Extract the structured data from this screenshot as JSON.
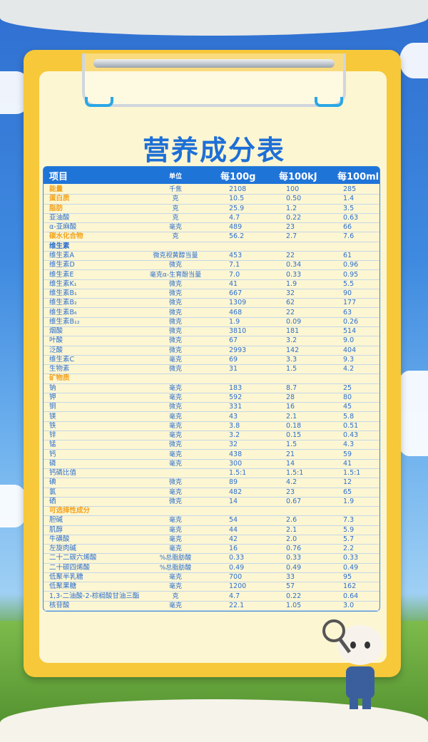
{
  "title": "营养成分表",
  "colors": {
    "accent": "#1f74d8",
    "highlight": "#f2a21b",
    "board": "#f6c83a",
    "paper": "#fdf6d2"
  },
  "table": {
    "headers": [
      "项目",
      "单位",
      "每100g",
      "每100kJ",
      "每100ml"
    ],
    "rows": [
      {
        "name": "能量",
        "unit": "千焦",
        "g": "2108",
        "kj": "100",
        "ml": "285",
        "style": "orange"
      },
      {
        "name": "蛋白质",
        "unit": "克",
        "g": "10.5",
        "kj": "0.50",
        "ml": "1.4",
        "style": "orange"
      },
      {
        "name": "脂肪",
        "unit": "克",
        "g": "25.9",
        "kj": "1.2",
        "ml": "3.5",
        "style": "orange"
      },
      {
        "name": "亚油酸",
        "unit": "克",
        "g": "4.7",
        "kj": "0.22",
        "ml": "0.63"
      },
      {
        "name": "α-亚麻酸",
        "unit": "毫克",
        "g": "489",
        "kj": "23",
        "ml": "66"
      },
      {
        "name": "碳水化合物",
        "unit": "克",
        "g": "56.2",
        "kj": "2.7",
        "ml": "7.6",
        "style": "orange"
      },
      {
        "name": "维生素",
        "unit": "",
        "g": "",
        "kj": "",
        "ml": "",
        "style": "section"
      },
      {
        "name": "维生素A",
        "unit": "微克视黄醇当量",
        "g": "453",
        "kj": "22",
        "ml": "61"
      },
      {
        "name": "维生素D",
        "unit": "微克",
        "g": "7.1",
        "kj": "0.34",
        "ml": "0.96"
      },
      {
        "name": "维生素E",
        "unit": "毫克α-生育酚当量",
        "g": "7.0",
        "kj": "0.33",
        "ml": "0.95"
      },
      {
        "name": "维生素K₁",
        "unit": "微克",
        "g": "41",
        "kj": "1.9",
        "ml": "5.5"
      },
      {
        "name": "维生素B₁",
        "unit": "微克",
        "g": "667",
        "kj": "32",
        "ml": "90"
      },
      {
        "name": "维生素B₂",
        "unit": "微克",
        "g": "1309",
        "kj": "62",
        "ml": "177"
      },
      {
        "name": "维生素B₆",
        "unit": "微克",
        "g": "468",
        "kj": "22",
        "ml": "63"
      },
      {
        "name": "维生素B₁₂",
        "unit": "微克",
        "g": "1.9",
        "kj": "0.09",
        "ml": "0.26"
      },
      {
        "name": "烟酸",
        "unit": "微克",
        "g": "3810",
        "kj": "181",
        "ml": "514"
      },
      {
        "name": "叶酸",
        "unit": "微克",
        "g": "67",
        "kj": "3.2",
        "ml": "9.0"
      },
      {
        "name": "泛酸",
        "unit": "微克",
        "g": "2993",
        "kj": "142",
        "ml": "404"
      },
      {
        "name": "维生素C",
        "unit": "毫克",
        "g": "69",
        "kj": "3.3",
        "ml": "9.3"
      },
      {
        "name": "生物素",
        "unit": "微克",
        "g": "31",
        "kj": "1.5",
        "ml": "4.2"
      },
      {
        "name": "矿物质",
        "unit": "",
        "g": "",
        "kj": "",
        "ml": "",
        "style": "orange"
      },
      {
        "name": "钠",
        "unit": "毫克",
        "g": "183",
        "kj": "8.7",
        "ml": "25"
      },
      {
        "name": "钾",
        "unit": "毫克",
        "g": "592",
        "kj": "28",
        "ml": "80"
      },
      {
        "name": "铜",
        "unit": "微克",
        "g": "331",
        "kj": "16",
        "ml": "45"
      },
      {
        "name": "镁",
        "unit": "毫克",
        "g": "43",
        "kj": "2.1",
        "ml": "5.8"
      },
      {
        "name": "铁",
        "unit": "毫克",
        "g": "3.8",
        "kj": "0.18",
        "ml": "0.51"
      },
      {
        "name": "锌",
        "unit": "毫克",
        "g": "3.2",
        "kj": "0.15",
        "ml": "0.43"
      },
      {
        "name": "锰",
        "unit": "微克",
        "g": "32",
        "kj": "1.5",
        "ml": "4.3"
      },
      {
        "name": "钙",
        "unit": "毫克",
        "g": "438",
        "kj": "21",
        "ml": "59"
      },
      {
        "name": "磷",
        "unit": "毫克",
        "g": "300",
        "kj": "14",
        "ml": "41"
      },
      {
        "name": "钙磷比值",
        "unit": "",
        "g": "1.5:1",
        "kj": "1.5:1",
        "ml": "1.5:1"
      },
      {
        "name": "碘",
        "unit": "微克",
        "g": "89",
        "kj": "4.2",
        "ml": "12"
      },
      {
        "name": "氯",
        "unit": "毫克",
        "g": "482",
        "kj": "23",
        "ml": "65"
      },
      {
        "name": "硒",
        "unit": "微克",
        "g": "14",
        "kj": "0.67",
        "ml": "1.9"
      },
      {
        "name": "可选择性成分",
        "unit": "",
        "g": "",
        "kj": "",
        "ml": "",
        "style": "orange"
      },
      {
        "name": "胆碱",
        "unit": "毫克",
        "g": "54",
        "kj": "2.6",
        "ml": "7.3"
      },
      {
        "name": "肌醇",
        "unit": "毫克",
        "g": "44",
        "kj": "2.1",
        "ml": "5.9"
      },
      {
        "name": "牛磺酸",
        "unit": "毫克",
        "g": "42",
        "kj": "2.0",
        "ml": "5.7"
      },
      {
        "name": "左旋肉碱",
        "unit": "毫克",
        "g": "16",
        "kj": "0.76",
        "ml": "2.2"
      },
      {
        "name": "二十二碳六烯酸",
        "unit": "%总脂肪酸",
        "g": "0.33",
        "kj": "0.33",
        "ml": "0.33"
      },
      {
        "name": "二十碳四烯酸",
        "unit": "%总脂肪酸",
        "g": "0.49",
        "kj": "0.49",
        "ml": "0.49"
      },
      {
        "name": "低聚半乳糖",
        "unit": "毫克",
        "g": "700",
        "kj": "33",
        "ml": "95"
      },
      {
        "name": "低聚果糖",
        "unit": "毫克",
        "g": "1200",
        "kj": "57",
        "ml": "162"
      },
      {
        "name": "1,3-二油酸-2-棕榈酸甘油三酯",
        "unit": "克",
        "g": "4.7",
        "kj": "0.22",
        "ml": "0.64"
      },
      {
        "name": "核苷酸",
        "unit": "毫克",
        "g": "22.1",
        "kj": "1.05",
        "ml": "3.0"
      }
    ]
  }
}
